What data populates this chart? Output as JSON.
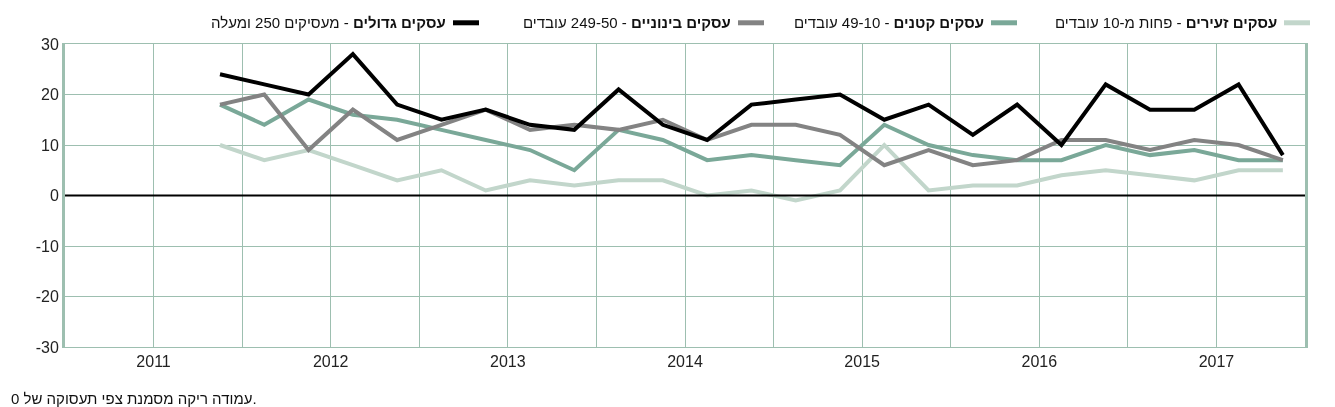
{
  "chart_data": {
    "type": "line",
    "x": [
      2011.875,
      2012.125,
      2012.375,
      2012.625,
      2012.875,
      2013.125,
      2013.375,
      2013.625,
      2013.875,
      2014.125,
      2014.375,
      2014.625,
      2014.875,
      2015.125,
      2015.375,
      2015.625,
      2015.875,
      2016.125,
      2016.375,
      2016.625,
      2016.875,
      2017.125,
      2017.375,
      2017.625,
      2017.875
    ],
    "series": [
      {
        "name": "עסקים זעירים - פחות מ-10 עובדים",
        "color": "#c2d6cb",
        "values": [
          10,
          7,
          9,
          6,
          3,
          5,
          1,
          3,
          2,
          3,
          3,
          0,
          1,
          -1,
          1,
          10,
          1,
          2,
          2,
          4,
          5,
          4,
          3,
          5,
          5
        ]
      },
      {
        "name": "עסקים קטנים - 49-10 עובדים",
        "color": "#7aa898",
        "values": [
          18,
          14,
          19,
          16,
          15,
          13,
          11,
          9,
          5,
          13,
          11,
          7,
          8,
          7,
          6,
          14,
          10,
          8,
          7,
          7,
          10,
          8,
          9,
          7,
          7
        ]
      },
      {
        "name": "עסקים בינוניים - 249-50 עובדים",
        "color": "#838383",
        "values": [
          18,
          20,
          9,
          17,
          11,
          14,
          17,
          13,
          14,
          13,
          15,
          11,
          14,
          14,
          12,
          6,
          9,
          6,
          7,
          11,
          11,
          9,
          11,
          10,
          7
        ]
      },
      {
        "name": "עסקים גדולים - מעסיקים 250 ומעלה",
        "color": "#000000",
        "values": [
          24,
          22,
          20,
          28,
          18,
          15,
          17,
          14,
          13,
          21,
          14,
          11,
          18,
          19,
          20,
          15,
          18,
          12,
          18,
          10,
          22,
          17,
          17,
          22,
          8
        ]
      }
    ],
    "xlim": [
      2011,
      2018
    ],
    "xticks": [
      {
        "value": 2011.5,
        "label": "2011"
      },
      {
        "value": 2012,
        "label": null
      },
      {
        "value": 2012.5,
        "label": "2012"
      },
      {
        "value": 2013,
        "label": null
      },
      {
        "value": 2013.5,
        "label": "2013"
      },
      {
        "value": 2014,
        "label": null
      },
      {
        "value": 2014.5,
        "label": "2014"
      },
      {
        "value": 2015,
        "label": null
      },
      {
        "value": 2015.5,
        "label": "2015"
      },
      {
        "value": 2016,
        "label": null
      },
      {
        "value": 2016.5,
        "label": "2016"
      },
      {
        "value": 2017,
        "label": null
      },
      {
        "value": 2017.5,
        "label": "2017"
      }
    ],
    "ylim": [
      -30,
      30
    ],
    "yticks": [
      -30,
      -20,
      -10,
      0,
      10,
      20,
      30
    ],
    "ref_lines": [
      {
        "axis": "y",
        "value": 0,
        "color": "#000000"
      }
    ],
    "grid": true,
    "legend": "top",
    "marker": "none",
    "line_style": "solid",
    "annotations": [
      "עמודה ריקה מסמנת צפי תעסוקה של 0."
    ]
  }
}
